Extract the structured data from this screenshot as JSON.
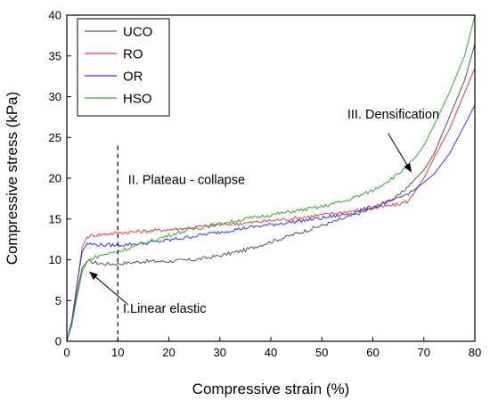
{
  "chart_data": {
    "type": "line",
    "xlabel": "Compressive strain (%)",
    "ylabel": "Compressive stress (kPa)",
    "xlim": [
      0,
      80
    ],
    "ylim": [
      0,
      40
    ],
    "xticks": [
      0,
      10,
      20,
      30,
      40,
      50,
      60,
      70,
      80
    ],
    "yticks": [
      0,
      5,
      10,
      15,
      20,
      25,
      30,
      35,
      40
    ],
    "grid": false,
    "legend_position": "top-left",
    "vertical_reference_line": 10,
    "series": [
      {
        "name": "UCO",
        "color": "#555555",
        "x": [
          0,
          1,
          2,
          3,
          4,
          5,
          7,
          10,
          15,
          20,
          25,
          30,
          35,
          40,
          45,
          50,
          55,
          60,
          65,
          70,
          72,
          75,
          78,
          80
        ],
        "y": [
          0,
          2.5,
          6,
          9,
          9.8,
          9.7,
          9.5,
          9.5,
          9.8,
          9.8,
          10,
          10.5,
          11.2,
          12.2,
          13.2,
          14.2,
          15.2,
          16.3,
          17.8,
          21,
          23,
          27.5,
          32,
          36.5
        ]
      },
      {
        "name": "RO",
        "color": "#ff3333",
        "x": [
          0,
          1,
          2,
          3,
          4,
          5,
          7,
          10,
          15,
          20,
          25,
          30,
          35,
          40,
          45,
          50,
          55,
          60,
          65,
          67,
          70,
          72,
          75,
          78,
          80
        ],
        "y": [
          0,
          2.5,
          7,
          11.5,
          12.8,
          13,
          13.1,
          13.3,
          13.5,
          13.7,
          14,
          14.3,
          14.5,
          14.8,
          15.1,
          15.5,
          15.9,
          16.3,
          16.8,
          17.2,
          20,
          22.5,
          26,
          30.5,
          33.5
        ]
      },
      {
        "name": "OR",
        "color": "#3333ff",
        "x": [
          0,
          1,
          2,
          3,
          4,
          5,
          7,
          10,
          15,
          20,
          25,
          30,
          35,
          40,
          45,
          50,
          55,
          60,
          65,
          68,
          70,
          72,
          75,
          78,
          80
        ],
        "y": [
          0,
          2.5,
          7,
          11,
          12,
          11.9,
          11.8,
          11.8,
          12,
          12.4,
          12.9,
          13.4,
          13.9,
          14.3,
          14.7,
          15.1,
          15.6,
          16.5,
          17.5,
          18.5,
          19.5,
          20.5,
          23,
          26.5,
          29
        ]
      },
      {
        "name": "HSO",
        "color": "#33aa33",
        "x": [
          0,
          1,
          2,
          3,
          4,
          5,
          7,
          10,
          15,
          20,
          25,
          30,
          35,
          40,
          45,
          50,
          55,
          60,
          65,
          68,
          70,
          72,
          75,
          78,
          80
        ],
        "y": [
          0,
          2,
          5.5,
          8.5,
          9.8,
          10.2,
          10.6,
          11,
          12,
          13,
          13.8,
          14.4,
          15,
          15.5,
          16,
          16.5,
          17.3,
          18.5,
          20.5,
          22.3,
          24,
          26.5,
          30.5,
          35,
          40
        ]
      }
    ],
    "annotations": [
      {
        "text": "I.Linear elastic",
        "x": 11,
        "y": 3.5,
        "arrow_from": [
          12,
          4.5
        ],
        "arrow_to": [
          4.5,
          8.5
        ]
      },
      {
        "text": "II. Plateau - collapse",
        "x": 12,
        "y": 19.3
      },
      {
        "text": "III. Densification",
        "x": 55,
        "y": 27.3,
        "arrow_from": [
          63,
          25.5
        ],
        "arrow_to": [
          67.5,
          20.8
        ]
      }
    ]
  }
}
